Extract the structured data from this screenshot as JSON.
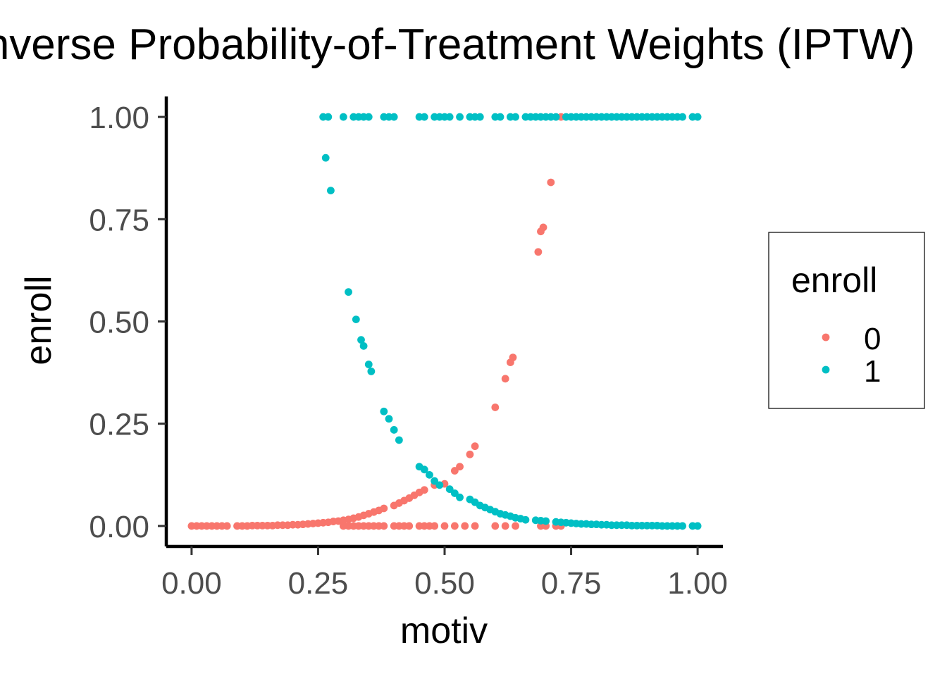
{
  "chart_data": {
    "type": "scatter",
    "title": "Inverse Probability-of-Treatment Weights (IPTW)",
    "xlabel": "motiv",
    "ylabel": "enroll",
    "xlim": [
      -0.05,
      1.05
    ],
    "ylim": [
      -0.05,
      1.05
    ],
    "x_ticks": [
      {
        "value": 0.0,
        "label": "0.00"
      },
      {
        "value": 0.25,
        "label": "0.25"
      },
      {
        "value": 0.5,
        "label": "0.50"
      },
      {
        "value": 0.75,
        "label": "0.75"
      },
      {
        "value": 1.0,
        "label": "1.00"
      }
    ],
    "y_ticks": [
      {
        "value": 0.0,
        "label": "0.00"
      },
      {
        "value": 0.25,
        "label": "0.25"
      },
      {
        "value": 0.5,
        "label": "0.50"
      },
      {
        "value": 0.75,
        "label": "0.75"
      },
      {
        "value": 1.0,
        "label": "1.00"
      }
    ],
    "grid": false,
    "legend": {
      "title": "enroll",
      "position": "right"
    },
    "series": [
      {
        "name": "0",
        "color": "#F8766D",
        "points": [
          [
            0.0,
            0.0
          ],
          [
            0.01,
            0.0
          ],
          [
            0.02,
            0.0
          ],
          [
            0.03,
            0.0
          ],
          [
            0.04,
            0.0
          ],
          [
            0.05,
            0.0
          ],
          [
            0.06,
            0.0
          ],
          [
            0.07,
            0.0
          ],
          [
            0.09,
            0.0
          ],
          [
            0.1,
            0.0
          ],
          [
            0.11,
            0.0
          ],
          [
            0.12,
            0.001
          ],
          [
            0.13,
            0.001
          ],
          [
            0.14,
            0.001
          ],
          [
            0.15,
            0.001
          ],
          [
            0.16,
            0.001
          ],
          [
            0.17,
            0.002
          ],
          [
            0.18,
            0.002
          ],
          [
            0.19,
            0.002
          ],
          [
            0.2,
            0.003
          ],
          [
            0.21,
            0.003
          ],
          [
            0.22,
            0.004
          ],
          [
            0.23,
            0.005
          ],
          [
            0.24,
            0.006
          ],
          [
            0.25,
            0.007
          ],
          [
            0.26,
            0.008
          ],
          [
            0.27,
            0.009
          ],
          [
            0.28,
            0.011
          ],
          [
            0.29,
            0.012
          ],
          [
            0.3,
            0.014
          ],
          [
            0.31,
            0.016
          ],
          [
            0.32,
            0.019
          ],
          [
            0.33,
            0.022
          ],
          [
            0.34,
            0.026
          ],
          [
            0.35,
            0.03
          ],
          [
            0.36,
            0.034
          ],
          [
            0.37,
            0.038
          ],
          [
            0.38,
            0.043
          ],
          [
            0.4,
            0.05
          ],
          [
            0.41,
            0.056
          ],
          [
            0.42,
            0.062
          ],
          [
            0.43,
            0.068
          ],
          [
            0.44,
            0.075
          ],
          [
            0.45,
            0.082
          ],
          [
            0.46,
            0.088
          ],
          [
            0.48,
            0.1
          ],
          [
            0.5,
            0.103
          ],
          [
            0.52,
            0.135
          ],
          [
            0.53,
            0.145
          ],
          [
            0.55,
            0.175
          ],
          [
            0.56,
            0.195
          ],
          [
            0.6,
            0.29
          ],
          [
            0.62,
            0.36
          ],
          [
            0.63,
            0.4
          ],
          [
            0.635,
            0.412
          ],
          [
            0.685,
            0.67
          ],
          [
            0.69,
            0.72
          ],
          [
            0.695,
            0.73
          ],
          [
            0.71,
            0.84
          ],
          [
            0.73,
            1.0
          ],
          [
            0.3,
            0.0
          ],
          [
            0.31,
            0.0
          ],
          [
            0.32,
            0.0
          ],
          [
            0.33,
            0.0
          ],
          [
            0.34,
            0.0
          ],
          [
            0.35,
            0.0
          ],
          [
            0.36,
            0.0
          ],
          [
            0.37,
            0.0
          ],
          [
            0.38,
            0.0
          ],
          [
            0.4,
            0.0
          ],
          [
            0.41,
            0.0
          ],
          [
            0.42,
            0.0
          ],
          [
            0.43,
            0.0
          ],
          [
            0.45,
            0.0
          ],
          [
            0.46,
            0.0
          ],
          [
            0.47,
            0.0
          ],
          [
            0.48,
            0.0
          ],
          [
            0.5,
            0.0
          ],
          [
            0.52,
            0.0
          ],
          [
            0.54,
            0.0
          ],
          [
            0.56,
            0.0
          ],
          [
            0.6,
            0.0
          ],
          [
            0.62,
            0.0
          ],
          [
            0.64,
            0.0
          ],
          [
            0.69,
            0.0
          ],
          [
            0.7,
            0.0
          ],
          [
            0.72,
            0.0
          ],
          [
            0.73,
            0.0
          ]
        ]
      },
      {
        "name": "1",
        "color": "#00BFC4",
        "points": [
          [
            0.26,
            1.0
          ],
          [
            0.27,
            1.0
          ],
          [
            0.3,
            1.0
          ],
          [
            0.32,
            1.0
          ],
          [
            0.33,
            1.0
          ],
          [
            0.34,
            1.0
          ],
          [
            0.35,
            1.0
          ],
          [
            0.38,
            1.0
          ],
          [
            0.39,
            1.0
          ],
          [
            0.4,
            1.0
          ],
          [
            0.45,
            1.0
          ],
          [
            0.46,
            1.0
          ],
          [
            0.48,
            1.0
          ],
          [
            0.49,
            1.0
          ],
          [
            0.5,
            1.0
          ],
          [
            0.51,
            1.0
          ],
          [
            0.53,
            1.0
          ],
          [
            0.55,
            1.0
          ],
          [
            0.56,
            1.0
          ],
          [
            0.57,
            1.0
          ],
          [
            0.6,
            1.0
          ],
          [
            0.61,
            1.0
          ],
          [
            0.63,
            1.0
          ],
          [
            0.64,
            1.0
          ],
          [
            0.66,
            1.0
          ],
          [
            0.67,
            1.0
          ],
          [
            0.68,
            1.0
          ],
          [
            0.69,
            1.0
          ],
          [
            0.7,
            1.0
          ],
          [
            0.71,
            1.0
          ],
          [
            0.72,
            1.0
          ],
          [
            0.74,
            1.0
          ],
          [
            0.75,
            1.0
          ],
          [
            0.76,
            1.0
          ],
          [
            0.77,
            1.0
          ],
          [
            0.78,
            1.0
          ],
          [
            0.79,
            1.0
          ],
          [
            0.8,
            1.0
          ],
          [
            0.81,
            1.0
          ],
          [
            0.82,
            1.0
          ],
          [
            0.83,
            1.0
          ],
          [
            0.84,
            1.0
          ],
          [
            0.85,
            1.0
          ],
          [
            0.86,
            1.0
          ],
          [
            0.87,
            1.0
          ],
          [
            0.88,
            1.0
          ],
          [
            0.89,
            1.0
          ],
          [
            0.9,
            1.0
          ],
          [
            0.91,
            1.0
          ],
          [
            0.92,
            1.0
          ],
          [
            0.93,
            1.0
          ],
          [
            0.94,
            1.0
          ],
          [
            0.95,
            1.0
          ],
          [
            0.96,
            1.0
          ],
          [
            0.97,
            1.0
          ],
          [
            0.99,
            1.0
          ],
          [
            1.0,
            1.0
          ],
          [
            0.265,
            0.9
          ],
          [
            0.275,
            0.82
          ],
          [
            0.31,
            0.572
          ],
          [
            0.325,
            0.505
          ],
          [
            0.335,
            0.455
          ],
          [
            0.34,
            0.44
          ],
          [
            0.35,
            0.395
          ],
          [
            0.355,
            0.378
          ],
          [
            0.38,
            0.28
          ],
          [
            0.39,
            0.262
          ],
          [
            0.4,
            0.235
          ],
          [
            0.41,
            0.21
          ],
          [
            0.45,
            0.145
          ],
          [
            0.46,
            0.138
          ],
          [
            0.47,
            0.125
          ],
          [
            0.48,
            0.11
          ],
          [
            0.49,
            0.1
          ],
          [
            0.51,
            0.09
          ],
          [
            0.52,
            0.08
          ],
          [
            0.53,
            0.07
          ],
          [
            0.55,
            0.065
          ],
          [
            0.56,
            0.058
          ],
          [
            0.57,
            0.05
          ],
          [
            0.58,
            0.045
          ],
          [
            0.59,
            0.04
          ],
          [
            0.6,
            0.035
          ],
          [
            0.61,
            0.03
          ],
          [
            0.62,
            0.027
          ],
          [
            0.63,
            0.024
          ],
          [
            0.64,
            0.02
          ],
          [
            0.65,
            0.018
          ],
          [
            0.66,
            0.015
          ],
          [
            0.68,
            0.014
          ],
          [
            0.69,
            0.013
          ],
          [
            0.7,
            0.012
          ],
          [
            0.72,
            0.01
          ],
          [
            0.73,
            0.009
          ],
          [
            0.74,
            0.008
          ],
          [
            0.75,
            0.007
          ],
          [
            0.76,
            0.006
          ],
          [
            0.77,
            0.005
          ],
          [
            0.78,
            0.005
          ],
          [
            0.79,
            0.004
          ],
          [
            0.8,
            0.004
          ],
          [
            0.81,
            0.003
          ],
          [
            0.82,
            0.003
          ],
          [
            0.83,
            0.002
          ],
          [
            0.84,
            0.002
          ],
          [
            0.85,
            0.002
          ],
          [
            0.86,
            0.002
          ],
          [
            0.87,
            0.001
          ],
          [
            0.88,
            0.001
          ],
          [
            0.89,
            0.001
          ],
          [
            0.9,
            0.001
          ],
          [
            0.91,
            0.001
          ],
          [
            0.92,
            0.001
          ],
          [
            0.93,
            0.0
          ],
          [
            0.94,
            0.0
          ],
          [
            0.95,
            0.0
          ],
          [
            0.96,
            0.0
          ],
          [
            0.97,
            0.0
          ],
          [
            0.99,
            0.0
          ],
          [
            1.0,
            0.0
          ]
        ]
      }
    ]
  }
}
